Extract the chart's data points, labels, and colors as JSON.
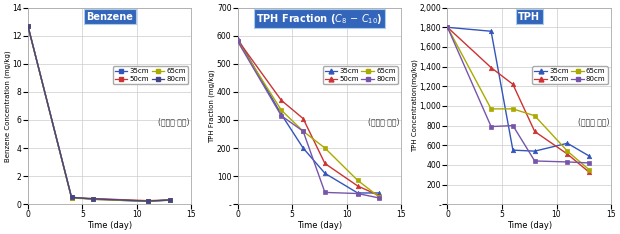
{
  "benzene": {
    "title": "Benzene",
    "ylabel": "Benzene Concentration (mg/kg)",
    "xlabel": "Time (day)",
    "xlim": [
      0,
      14
    ],
    "ylim": [
      0,
      14
    ],
    "yticks": [
      0,
      2,
      4,
      6,
      8,
      10,
      12,
      14
    ],
    "xticks": [
      0,
      5,
      10,
      15
    ],
    "note": "(주입정 기준)",
    "series": {
      "35cm": {
        "x": [
          0,
          4,
          6,
          11,
          13
        ],
        "y": [
          12.7,
          0.5,
          0.35,
          0.2,
          0.3
        ],
        "color": "#3355BB",
        "marker": "s"
      },
      "50cm": {
        "x": [
          0,
          4,
          6,
          11,
          13
        ],
        "y": [
          12.7,
          0.45,
          0.4,
          0.25,
          0.3
        ],
        "color": "#CC3333",
        "marker": "s"
      },
      "65cm": {
        "x": [
          0,
          4,
          6,
          11,
          13
        ],
        "y": [
          12.7,
          0.45,
          0.35,
          0.2,
          0.28
        ],
        "color": "#AAAA00",
        "marker": "s"
      },
      "80cm": {
        "x": [
          0,
          4,
          6,
          11,
          13
        ],
        "y": [
          12.7,
          0.48,
          0.38,
          0.22,
          0.3
        ],
        "color": "#444488",
        "marker": "s"
      }
    }
  },
  "tph_fraction": {
    "title": "TPH Fraction ($C_8$ $-$ $C_{10}$)",
    "ylabel": "TPH Fraction (mg/kg)",
    "xlabel": "Time (day)",
    "xlim": [
      0,
      14
    ],
    "ylim": [
      0,
      700
    ],
    "yticks": [
      0,
      100,
      200,
      300,
      400,
      500,
      600,
      700
    ],
    "xticks": [
      0,
      5,
      10,
      15
    ],
    "note": "(주입정 기준)",
    "series": {
      "35cm": {
        "x": [
          0,
          4,
          6,
          8,
          11,
          13
        ],
        "y": [
          590,
          320,
          200,
          110,
          40,
          40
        ],
        "color": "#3355BB",
        "marker": "^"
      },
      "50cm": {
        "x": [
          0,
          4,
          6,
          8,
          11,
          13
        ],
        "y": [
          585,
          370,
          305,
          145,
          65,
          30
        ],
        "color": "#CC3333",
        "marker": "^"
      },
      "65cm": {
        "x": [
          0,
          4,
          6,
          8,
          11,
          13
        ],
        "y": [
          580,
          335,
          260,
          200,
          85,
          25
        ],
        "color": "#AAAA00",
        "marker": "s"
      },
      "80cm": {
        "x": [
          0,
          4,
          6,
          8,
          11,
          13
        ],
        "y": [
          580,
          315,
          260,
          42,
          38,
          22
        ],
        "color": "#7755AA",
        "marker": "s"
      }
    }
  },
  "tph": {
    "title": "TPH",
    "ylabel": "TPH Concentration(mg/kg)",
    "xlabel": "Time (day)",
    "xlim": [
      0,
      14
    ],
    "ylim": [
      0,
      2000
    ],
    "yticks": [
      0,
      200,
      400,
      600,
      800,
      1000,
      1200,
      1400,
      1600,
      1800,
      2000
    ],
    "xticks": [
      0,
      5,
      10,
      15
    ],
    "note": "(주입정 기준)",
    "series": {
      "35cm": {
        "x": [
          0,
          4,
          6,
          8,
          11,
          13
        ],
        "y": [
          1800,
          1760,
          550,
          540,
          620,
          490
        ],
        "color": "#3355BB",
        "marker": "^"
      },
      "50cm": {
        "x": [
          0,
          4,
          6,
          8,
          11,
          13
        ],
        "y": [
          1800,
          1390,
          1220,
          740,
          510,
          325
        ],
        "color": "#CC3333",
        "marker": "^"
      },
      "65cm": {
        "x": [
          0,
          4,
          6,
          8,
          11,
          13
        ],
        "y": [
          1800,
          970,
          970,
          900,
          540,
          350
        ],
        "color": "#AAAA00",
        "marker": "s"
      },
      "80cm": {
        "x": [
          0,
          4,
          6,
          8,
          11,
          13
        ],
        "y": [
          1800,
          790,
          800,
          440,
          430,
          420
        ],
        "color": "#7755AA",
        "marker": "s"
      }
    }
  },
  "legend_order": [
    [
      "35cm",
      "50cm"
    ],
    [
      "65cm",
      "80cm"
    ]
  ],
  "title_box_facecolor": "#3366BB",
  "title_box_edgecolor": "#AACCEE",
  "title_text_color": "#FFFFFF",
  "bg_color": "#FFFFFF",
  "grid_color": "#CCCCCC",
  "border_color": "#AAAAAA"
}
